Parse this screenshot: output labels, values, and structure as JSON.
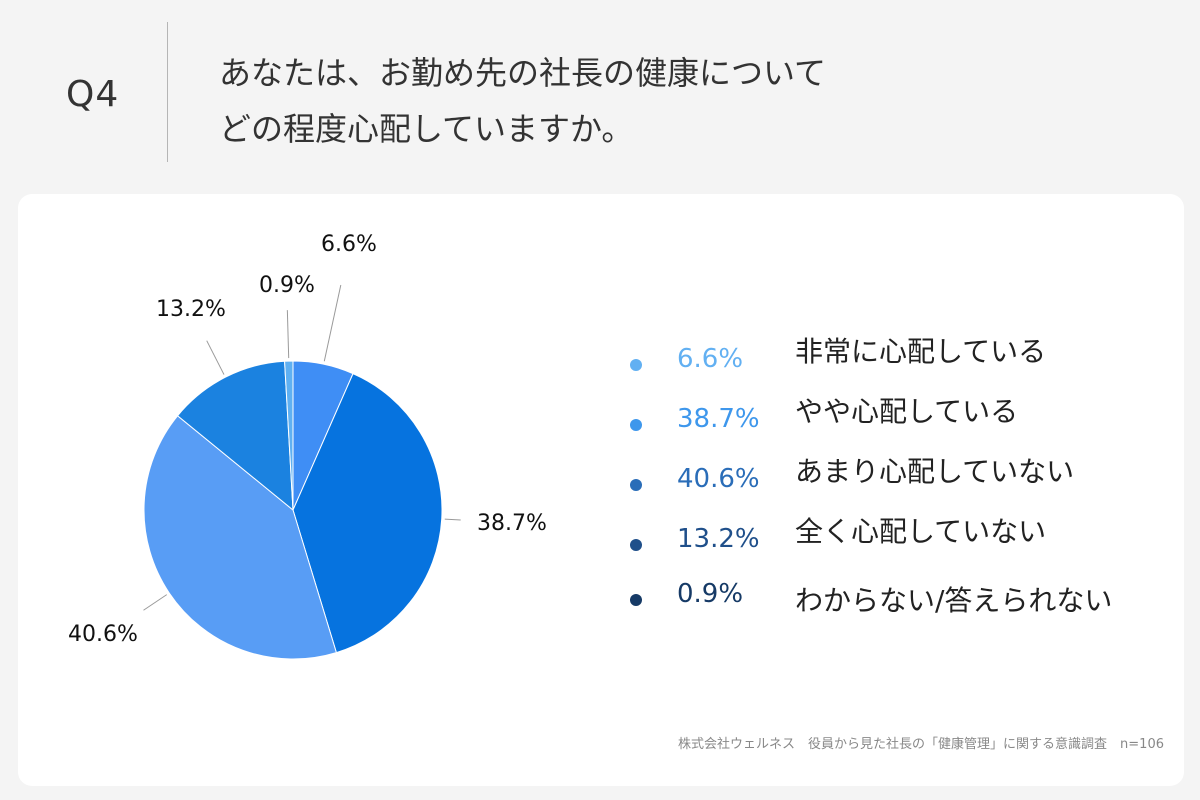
{
  "header": {
    "q_label": "Q4",
    "question_line1": "あなたは、お勤め先の社長の健康について",
    "question_line2": "どの程度心配していますか。"
  },
  "source": "株式会社ウェルネス　役員から見た社長の「健康管理」に関する意識調査　n=106",
  "chart_data": {
    "type": "pie",
    "title": "",
    "slices": [
      {
        "label": "非常に心配している",
        "value": 6.6,
        "value_label": "6.6%",
        "color": "#3f8ef5",
        "legend_color": "#62b0f2"
      },
      {
        "label": "やや心配している",
        "value": 38.7,
        "value_label": "38.7%",
        "color": "#0673df",
        "legend_color": "#3e97ec"
      },
      {
        "label": "あまり心配していない",
        "value": 40.6,
        "value_label": "40.6%",
        "color": "#589df5",
        "legend_color": "#2a6db8"
      },
      {
        "label": "全く心配していない",
        "value": 13.2,
        "value_label": "13.2%",
        "color": "#1b82e0",
        "legend_color": "#1f4f8a"
      },
      {
        "label": "わからない/答えられない",
        "value": 0.9,
        "value_label": "0.9%",
        "color": "#5fb0f2",
        "legend_color": "#163a66"
      }
    ],
    "legend_position": "right"
  }
}
